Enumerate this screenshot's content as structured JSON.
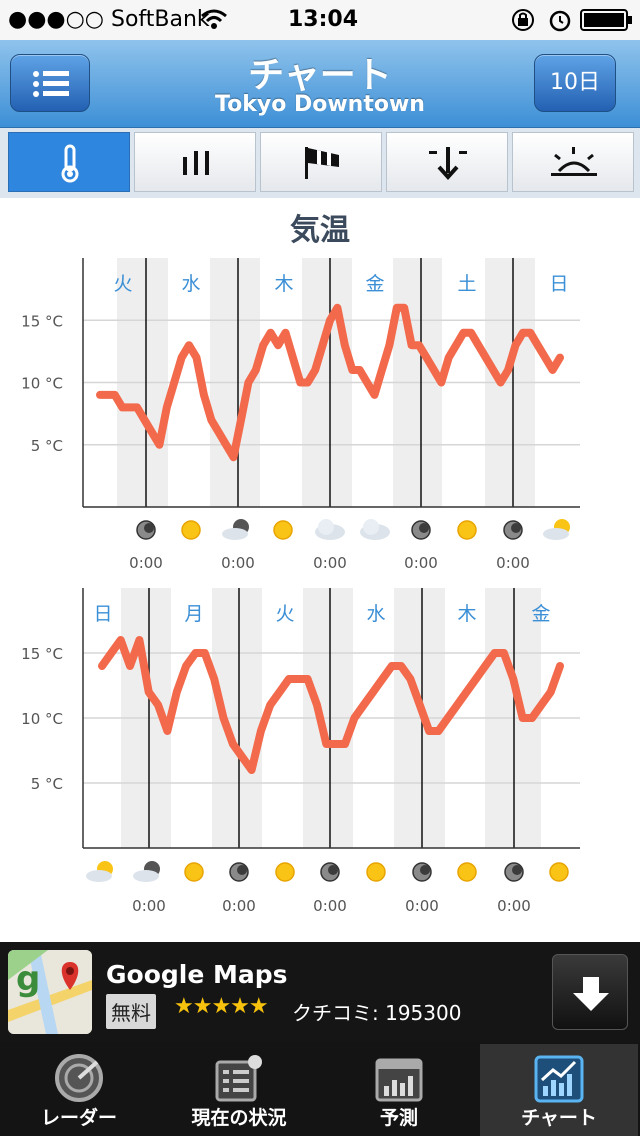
{
  "status_bar": {
    "carrier": "●●●○○ SoftBank",
    "time": "13:04"
  },
  "nav": {
    "title": "チャート",
    "subtitle": "Tokyo Downtown",
    "days_label": "10日"
  },
  "segments": [
    "thermometer-icon",
    "rain-icon",
    "wind-icon",
    "pressure-icon",
    "sunrise-icon"
  ],
  "chart_title": "気温",
  "chart_data": [
    {
      "type": "line",
      "title": "気温",
      "ylabel": "°C",
      "yticks": [
        "15 °C",
        "10 °C",
        "5 °C"
      ],
      "ylim": [
        0,
        20
      ],
      "days": [
        "火",
        "水",
        "木",
        "金",
        "土",
        "日"
      ],
      "time_labels": [
        "0:00",
        "0:00",
        "0:00",
        "0:00",
        "0:00"
      ],
      "weather_icons": [
        "moon",
        "sun",
        "cloud-moon",
        "sun",
        "cloud",
        "cloud",
        "moon",
        "sun",
        "moon",
        "cloud-sun"
      ],
      "series": [
        {
          "name": "temperature",
          "color": "#f2694b",
          "x": [
            0,
            1,
            2,
            3,
            4,
            5,
            6,
            7,
            8,
            9,
            10,
            11,
            12,
            13,
            14,
            15,
            16,
            17,
            18,
            19,
            20,
            21,
            22,
            23,
            24,
            25,
            26,
            27,
            28,
            29,
            30,
            31,
            32,
            33,
            34,
            35,
            36,
            37,
            38,
            39,
            40,
            41,
            42,
            43,
            44,
            45,
            46,
            47,
            48,
            49,
            50,
            51,
            52,
            53,
            54,
            55,
            56,
            57,
            58,
            59,
            60,
            61,
            62
          ],
          "values": [
            9,
            9,
            9,
            8,
            8,
            8,
            7,
            6,
            5,
            8,
            10,
            12,
            13,
            12,
            9,
            7,
            6,
            5,
            4,
            7,
            10,
            11,
            13,
            14,
            13,
            14,
            12,
            10,
            10,
            11,
            13,
            15,
            16,
            13,
            11,
            11,
            10,
            9,
            11,
            13,
            16,
            16,
            13,
            13,
            12,
            11,
            10,
            12,
            13,
            14,
            14,
            13,
            12,
            11,
            10,
            11,
            13,
            14,
            14,
            13,
            12,
            11,
            12
          ]
        }
      ]
    },
    {
      "type": "line",
      "title": "",
      "ylabel": "°C",
      "yticks": [
        "15 °C",
        "10 °C",
        "5 °C"
      ],
      "ylim": [
        0,
        20
      ],
      "days": [
        "日",
        "月",
        "火",
        "水",
        "木",
        "金"
      ],
      "time_labels": [
        "0:00",
        "0:00",
        "0:00",
        "0:00",
        "0:00"
      ],
      "weather_icons": [
        "cloud-sun",
        "cloud-moon",
        "sun",
        "moon",
        "sun",
        "moon",
        "sun",
        "moon",
        "sun",
        "moon",
        "sun"
      ],
      "series": [
        {
          "name": "temperature",
          "color": "#f2694b",
          "x": [
            0,
            1,
            2,
            3,
            4,
            5,
            6,
            7,
            8,
            9,
            10,
            11,
            12,
            13,
            14,
            15,
            16,
            17,
            18,
            19,
            20,
            21,
            22,
            23,
            24,
            25,
            26,
            27,
            28,
            29,
            30,
            31,
            32,
            33,
            34,
            35,
            36,
            37,
            38,
            39,
            40,
            41,
            42,
            43,
            44,
            45,
            46,
            47,
            48,
            49
          ],
          "values": [
            14,
            15,
            16,
            14,
            16,
            12,
            11,
            9,
            12,
            14,
            15,
            15,
            13,
            10,
            8,
            7,
            6,
            9,
            11,
            12,
            13,
            13,
            13,
            11,
            8,
            8,
            8,
            10,
            11,
            12,
            13,
            14,
            14,
            13,
            11,
            9,
            9,
            10,
            11,
            12,
            13,
            14,
            15,
            15,
            13,
            10,
            10,
            11,
            12,
            14
          ]
        }
      ]
    }
  ],
  "ad": {
    "app_name": "Google Maps",
    "badge": "無料",
    "stars": "★★★★★",
    "reviews": "クチコミ: 195300"
  },
  "tabs": [
    {
      "label": "レーダー"
    },
    {
      "label": "現在の状況"
    },
    {
      "label": "予測"
    },
    {
      "label": "チャート"
    }
  ]
}
